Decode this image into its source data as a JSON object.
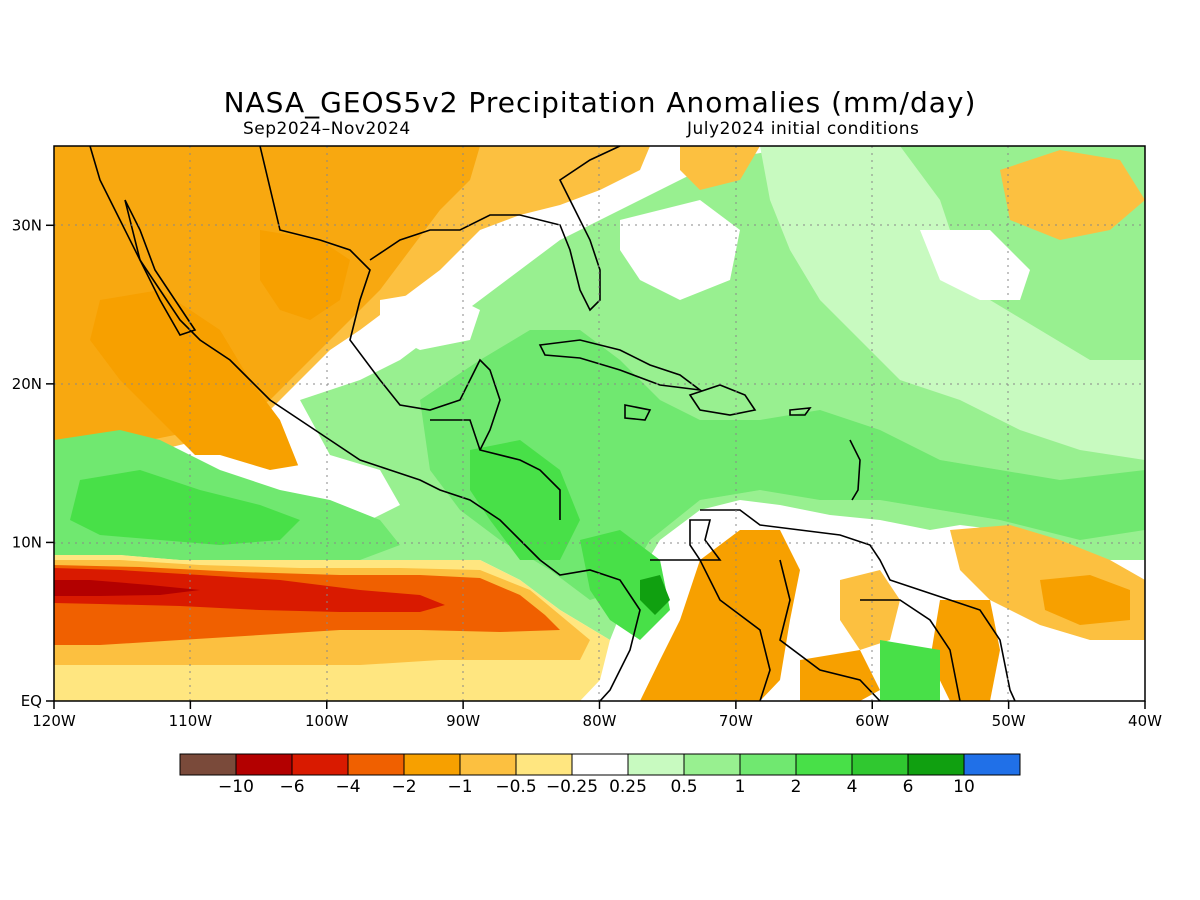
{
  "title": "NASA_GEOS5v2 Precipitation Anomalies (mm/day)",
  "period": "Sep2024–Nov2024",
  "init": "July2024 initial conditions",
  "lon_labels": [
    "120W",
    "110W",
    "100W",
    "90W",
    "80W",
    "70W",
    "60W",
    "50W",
    "40W"
  ],
  "lat_labels": [
    "EQ",
    "10N",
    "20N",
    "30N"
  ],
  "extent": {
    "lon": [
      -120,
      -40
    ],
    "lat": [
      0,
      35
    ]
  },
  "grid": "dotted",
  "legend_placement": "bottom",
  "colorbar": {
    "colors": [
      "#7a4a3a",
      "#b30000",
      "#d91a00",
      "#f06000",
      "#f7a000",
      "#fcc040",
      "#ffe680",
      "#ffffff",
      "#c8fac0",
      "#98f090",
      "#70e870",
      "#48e048",
      "#30c830",
      "#10a010",
      "#2070e8"
    ],
    "labels": [
      "−10",
      "−6",
      "−4",
      "−2",
      "−1",
      "−0.5",
      "−0.25",
      "0.25",
      "0.5",
      "1",
      "2",
      "4",
      "6",
      "10"
    ]
  }
}
